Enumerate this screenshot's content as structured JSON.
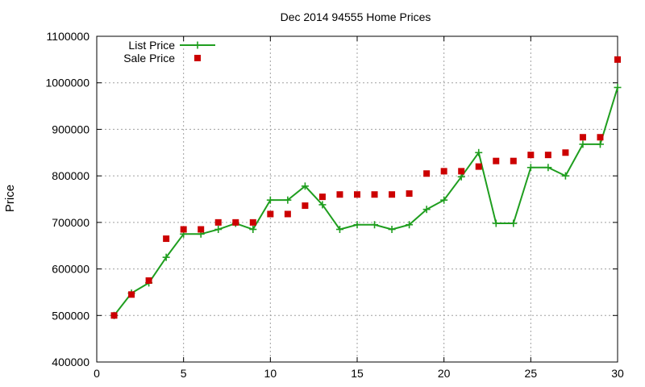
{
  "chart_data": {
    "type": "line",
    "title": "Dec 2014 94555 Home Prices",
    "xlabel": "",
    "ylabel": "Price",
    "xlim": [
      0,
      30
    ],
    "ylim": [
      400000,
      1100000
    ],
    "xticks": [
      0,
      5,
      10,
      15,
      20,
      25,
      30
    ],
    "yticks": [
      400000,
      500000,
      600000,
      700000,
      800000,
      900000,
      1000000,
      1100000
    ],
    "grid": true,
    "legend_position": "top-left",
    "series": [
      {
        "name": "List Price",
        "style": "line-with-plus-markers",
        "color": "#1f9e1f",
        "x": [
          1,
          2,
          3,
          4,
          5,
          6,
          7,
          8,
          9,
          10,
          11,
          12,
          13,
          14,
          15,
          16,
          17,
          18,
          19,
          20,
          21,
          22,
          23,
          24,
          25,
          26,
          27,
          28,
          29,
          30
        ],
        "y": [
          500000,
          548000,
          570000,
          625000,
          675000,
          675000,
          685000,
          698000,
          685000,
          748000,
          748000,
          778000,
          738000,
          685000,
          695000,
          695000,
          685000,
          695000,
          728000,
          748000,
          798000,
          850000,
          698000,
          698000,
          818000,
          818000,
          800000,
          868000,
          868000,
          990000
        ]
      },
      {
        "name": "Sale Price",
        "style": "square-markers",
        "color": "#cc0000",
        "x": [
          1,
          2,
          3,
          4,
          5,
          6,
          7,
          8,
          9,
          10,
          11,
          12,
          13,
          14,
          15,
          16,
          17,
          18,
          19,
          20,
          21,
          22,
          23,
          24,
          25,
          26,
          27,
          28,
          29,
          30
        ],
        "y": [
          500000,
          545000,
          575000,
          665000,
          685000,
          685000,
          700000,
          700000,
          700000,
          718000,
          718000,
          736000,
          755000,
          760000,
          760000,
          760000,
          760000,
          762000,
          805000,
          810000,
          810000,
          820000,
          832000,
          832000,
          845000,
          845000,
          850000,
          883000,
          883000,
          1050000
        ]
      }
    ]
  }
}
